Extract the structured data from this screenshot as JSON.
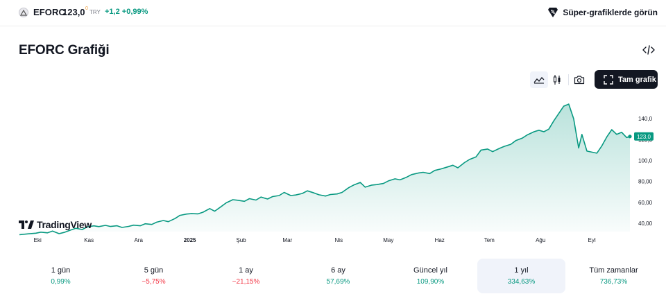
{
  "header": {
    "symbol": "EFORC",
    "price": "123,0",
    "price_superscript": "0",
    "currency": "TRY",
    "change": "+1,2",
    "change_percent": "+0,99%",
    "super_charts_label": "Süper-grafiklerde görün",
    "icons": {
      "symbol": "symbol-logo-icon",
      "super": "supercharts-icon"
    }
  },
  "title": {
    "text": "EFORC Grafiği",
    "chevron": "›",
    "embed_icon": "code-embed-icon"
  },
  "toolbar": {
    "area_icon": "area-chart-icon",
    "candle_icon": "candlestick-icon",
    "camera_icon": "camera-icon",
    "fullscreen_label": "Tam grafik",
    "fullscreen_icon": "fullscreen-icon"
  },
  "logo_text": "TradingView",
  "chart_data": {
    "type": "area",
    "x_tick_labels": [
      "Eki",
      "Kas",
      "Ara",
      "2025",
      "Şub",
      "Mar",
      "Nis",
      "May",
      "Haz",
      "Tem",
      "Ağu",
      "Eyl"
    ],
    "y_tick_labels": [
      "40,00",
      "60,00",
      "80,00",
      "100,0",
      "120,0",
      "140,0"
    ],
    "y_ticks": [
      40,
      60,
      80,
      100,
      120,
      140
    ],
    "ylim": [
      32,
      162
    ],
    "last_value_label": "123,0",
    "series": [
      {
        "color": "#089981",
        "points": [
          [
            "2024-09-20",
            29.0
          ],
          [
            "2024-09-25",
            29.8
          ],
          [
            "2024-09-30",
            30.5
          ],
          [
            "2024-10-03",
            31.5
          ],
          [
            "2024-10-07",
            30.8
          ],
          [
            "2024-10-10",
            32.5
          ],
          [
            "2024-10-14",
            30.0
          ],
          [
            "2024-10-17",
            31.2
          ],
          [
            "2024-10-21",
            33.5
          ],
          [
            "2024-10-24",
            35.2
          ],
          [
            "2024-10-28",
            34.0
          ],
          [
            "2024-10-31",
            36.5
          ],
          [
            "2024-11-04",
            37.5
          ],
          [
            "2024-11-07",
            36.8
          ],
          [
            "2024-11-11",
            38.0
          ],
          [
            "2024-11-14",
            36.9
          ],
          [
            "2024-11-18",
            37.6
          ],
          [
            "2024-11-21",
            36.0
          ],
          [
            "2024-11-25",
            37.0
          ],
          [
            "2024-11-28",
            38.2
          ],
          [
            "2024-12-02",
            37.6
          ],
          [
            "2024-12-05",
            39.5
          ],
          [
            "2024-12-09",
            38.8
          ],
          [
            "2024-12-12",
            41.0
          ],
          [
            "2024-12-16",
            42.6
          ],
          [
            "2024-12-19",
            41.5
          ],
          [
            "2024-12-23",
            44.5
          ],
          [
            "2024-12-26",
            47.5
          ],
          [
            "2024-12-30",
            48.8
          ],
          [
            "2025-01-02",
            49.2
          ],
          [
            "2025-01-06",
            49.0
          ],
          [
            "2025-01-09",
            50.6
          ],
          [
            "2025-01-13",
            54.0
          ],
          [
            "2025-01-16",
            51.5
          ],
          [
            "2025-01-20",
            56.0
          ],
          [
            "2025-01-23",
            59.5
          ],
          [
            "2025-01-27",
            62.5
          ],
          [
            "2025-01-30",
            62.0
          ],
          [
            "2025-02-03",
            61.0
          ],
          [
            "2025-02-06",
            63.5
          ],
          [
            "2025-02-10",
            62.2
          ],
          [
            "2025-02-13",
            65.0
          ],
          [
            "2025-02-17",
            63.2
          ],
          [
            "2025-02-20",
            65.5
          ],
          [
            "2025-02-24",
            66.5
          ],
          [
            "2025-02-27",
            69.5
          ],
          [
            "2025-03-03",
            66.5
          ],
          [
            "2025-03-06",
            67.0
          ],
          [
            "2025-03-10",
            68.5
          ],
          [
            "2025-03-13",
            71.0
          ],
          [
            "2025-03-17",
            69.0
          ],
          [
            "2025-03-20",
            67.2
          ],
          [
            "2025-03-24",
            66.0
          ],
          [
            "2025-03-27",
            67.5
          ],
          [
            "2025-03-31",
            68.0
          ],
          [
            "2025-04-03",
            69.5
          ],
          [
            "2025-04-07",
            74.0
          ],
          [
            "2025-04-10",
            76.5
          ],
          [
            "2025-04-14",
            79.0
          ],
          [
            "2025-04-17",
            74.5
          ],
          [
            "2025-04-21",
            76.5
          ],
          [
            "2025-04-24",
            77.0
          ],
          [
            "2025-04-28",
            78.0
          ],
          [
            "2025-05-01",
            80.5
          ],
          [
            "2025-05-05",
            82.5
          ],
          [
            "2025-05-08",
            81.5
          ],
          [
            "2025-05-12",
            84.0
          ],
          [
            "2025-05-15",
            86.5
          ],
          [
            "2025-05-19",
            88.0
          ],
          [
            "2025-05-22",
            88.7
          ],
          [
            "2025-05-26",
            87.5
          ],
          [
            "2025-05-29",
            90.5
          ],
          [
            "2025-06-02",
            92.0
          ],
          [
            "2025-06-05",
            93.5
          ],
          [
            "2025-06-09",
            95.5
          ],
          [
            "2025-06-12",
            93.0
          ],
          [
            "2025-06-16",
            98.0
          ],
          [
            "2025-06-19",
            101.0
          ],
          [
            "2025-06-23",
            103.5
          ],
          [
            "2025-06-26",
            110.0
          ],
          [
            "2025-06-30",
            111.0
          ],
          [
            "2025-07-03",
            108.5
          ],
          [
            "2025-07-07",
            111.5
          ],
          [
            "2025-07-10",
            113.5
          ],
          [
            "2025-07-14",
            115.5
          ],
          [
            "2025-07-17",
            119.0
          ],
          [
            "2025-07-21",
            121.5
          ],
          [
            "2025-07-24",
            124.5
          ],
          [
            "2025-07-28",
            127.5
          ],
          [
            "2025-07-31",
            129.0
          ],
          [
            "2025-08-03",
            127.5
          ],
          [
            "2025-08-06",
            130.0
          ],
          [
            "2025-08-09",
            138.0
          ],
          [
            "2025-08-12",
            145.0
          ],
          [
            "2025-08-15",
            152.0
          ],
          [
            "2025-08-18",
            154.0
          ],
          [
            "2025-08-21",
            140.0
          ],
          [
            "2025-08-24",
            112.0
          ],
          [
            "2025-08-26",
            125.0
          ],
          [
            "2025-08-29",
            109.0
          ],
          [
            "2025-09-01",
            108.0
          ],
          [
            "2025-09-04",
            107.0
          ],
          [
            "2025-09-07",
            114.0
          ],
          [
            "2025-09-10",
            122.5
          ],
          [
            "2025-09-13",
            129.5
          ],
          [
            "2025-09-16",
            125.0
          ],
          [
            "2025-09-19",
            127.0
          ],
          [
            "2025-09-22",
            122.0
          ],
          [
            "2025-09-24",
            123.0
          ]
        ]
      }
    ]
  },
  "periods": [
    {
      "label": "1 gün",
      "value": "0,99%",
      "status": "up",
      "active": false
    },
    {
      "label": "5 gün",
      "value": "−5,75%",
      "status": "down",
      "active": false
    },
    {
      "label": "1 ay",
      "value": "−21,15%",
      "status": "down",
      "active": false
    },
    {
      "label": "6 ay",
      "value": "57,69%",
      "status": "up",
      "active": false
    },
    {
      "label": "Güncel yıl",
      "value": "109,90%",
      "status": "up",
      "active": false
    },
    {
      "label": "1 yıl",
      "value": "334,63%",
      "status": "up",
      "active": true
    },
    {
      "label": "Tüm zamanlar",
      "value": "736,73%",
      "status": "up",
      "active": false
    }
  ],
  "colors": {
    "up": "#089981",
    "down": "#f23645",
    "text": "#131722",
    "muted": "#787b86"
  }
}
